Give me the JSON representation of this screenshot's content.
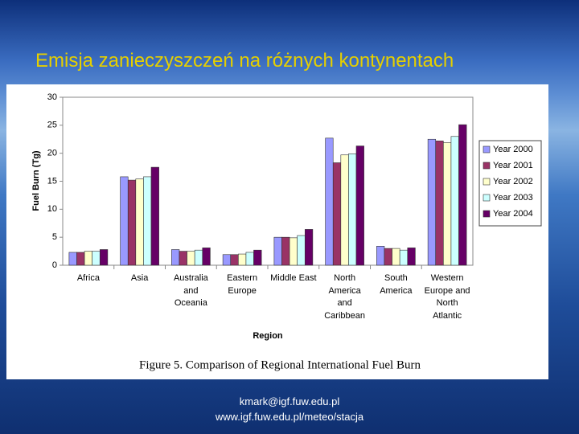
{
  "slide": {
    "title": "Emisja zanieczyszczeń na różnych kontynentach",
    "figure_caption": "Figure 5.  Comparison of Regional International Fuel Burn",
    "footer": [
      "kmark@igf.fuw.edu.pl",
      "www.igf.fuw.edu.pl/meteo/stacja"
    ]
  },
  "chart_data": {
    "type": "bar",
    "x_label": "Region",
    "y_label": "Fuel Burn (Tg)",
    "categories": [
      "Africa",
      "Asia",
      "Australia\nand\nOceania",
      "Eastern\nEurope",
      "Middle East",
      "North\nAmerica\nand\nCaribbean",
      "South\nAmerica",
      "Western\nEurope and\nNorth\nAtlantic"
    ],
    "series": [
      {
        "name": "Year 2000",
        "color": "#9999ff",
        "values": [
          2.3,
          15.8,
          2.8,
          1.9,
          5.0,
          22.7,
          3.4,
          22.5
        ]
      },
      {
        "name": "Year 2001",
        "color": "#993366",
        "values": [
          2.3,
          15.2,
          2.5,
          1.9,
          5.0,
          18.3,
          3.0,
          22.2
        ]
      },
      {
        "name": "Year 2002",
        "color": "#ffffcc",
        "values": [
          2.5,
          15.4,
          2.5,
          2.0,
          4.9,
          19.7,
          3.0,
          21.9
        ]
      },
      {
        "name": "Year 2003",
        "color": "#ccffff",
        "values": [
          2.5,
          15.8,
          2.7,
          2.3,
          5.3,
          19.9,
          2.7,
          23.0
        ]
      },
      {
        "name": "Year 2004",
        "color": "#660066",
        "values": [
          2.8,
          17.5,
          3.1,
          2.7,
          6.4,
          21.3,
          3.1,
          25.1
        ]
      }
    ],
    "ylim": [
      0,
      30
    ],
    "yticks": [
      0,
      5,
      10,
      15,
      20,
      25,
      30
    ],
    "grid": false,
    "legend": "right"
  }
}
